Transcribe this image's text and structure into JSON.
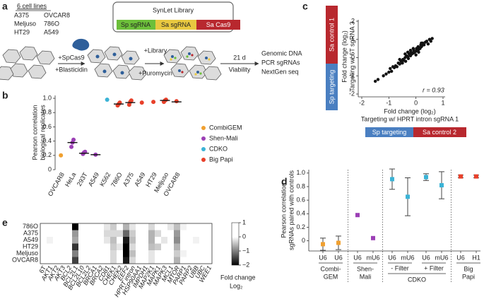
{
  "panel_labels": [
    "a",
    "b",
    "c",
    "d",
    "e"
  ],
  "schematic": {
    "cell_lines_title": "6 cell lines",
    "cell_lines": [
      "A375",
      "OVCAR8",
      "Meljuso",
      "786O",
      "HT29",
      "A549"
    ],
    "library_title": "SynLet Library",
    "library_parts": [
      "Sp sgRNA",
      "Sa sgRNA",
      "Sa Cas9"
    ],
    "step1": [
      "+SpCas9",
      "+Blasticidin"
    ],
    "step2": [
      "+Library",
      "+Puromycin"
    ],
    "step3": [
      "21 d",
      "Viability"
    ],
    "readout": [
      "Genomic DNA",
      "PCR sgRNAs",
      "NextGen seq"
    ]
  },
  "chart_data": [
    {
      "type": "dot",
      "y_label": [
        "Pearson correlation",
        "biological replicates"
      ],
      "categories": [
        "OVCAR8",
        "HeLa",
        "293T",
        "A549",
        "K562",
        "786O",
        "A375",
        "A549",
        "HT29",
        "Meljuso",
        "OVCAR8"
      ],
      "values": [
        null,
        0.38,
        0.23,
        0.21,
        null,
        0.92,
        0.94,
        null,
        null,
        0.97,
        0.95
      ],
      "points": [
        [
          0.2
        ],
        [
          0.32,
          0.38,
          0.42
        ],
        [
          0.22,
          0.24,
          0.25
        ],
        [
          0.21
        ],
        [
          0.98
        ],
        [
          0.9,
          0.92,
          0.94
        ],
        [
          0.91,
          0.95,
          0.97
        ],
        [
          0.94
        ],
        [
          0.95
        ],
        [
          0.95,
          0.97,
          0.98
        ],
        [
          0.96
        ]
      ],
      "colors": [
        "#f0a030",
        "#9b3fb5",
        "#9b3fb5",
        "#9b3fb5",
        "#3bb3d6",
        "#e8402a",
        "#e8402a",
        "#e8402a",
        "#e8402a",
        "#e8402a",
        "#e8402a"
      ],
      "series": [
        {
          "name": "CombiGEM",
          "color": "#f0a030"
        },
        {
          "name": "Shen-Mali",
          "color": "#9b3fb5"
        },
        {
          "name": "CDKO",
          "color": "#3bb3d6"
        },
        {
          "name": "Big Papi",
          "color": "#e8402a"
        }
      ],
      "ylim": [
        0,
        1.04
      ],
      "yticks": [
        0,
        0.2,
        0.4,
        0.6,
        0.8,
        {
          "value": 1,
          "label": "1.0"
        }
      ]
    },
    {
      "type": "scatter",
      "y_label": [
        "Fold change (log₂)",
        "Targeting w/ 6T sgRNA 3"
      ],
      "x_label": [
        "Fold change (log₂)",
        "Targeting w/ HPRT intron sgRNA 1"
      ],
      "y_bars": [
        "Sa control 1",
        "Sp targeting"
      ],
      "x_bars": [
        "Sp targeting",
        "Sa control 2"
      ],
      "annotation": "r = 0.93",
      "x": [
        -1.5,
        -1.4,
        -1.2,
        -1.1,
        -1.0,
        -0.95,
        -0.9,
        -0.85,
        -0.8,
        -0.75,
        -0.7,
        -0.65,
        -0.6,
        -0.55,
        -0.5,
        -0.48,
        -0.45,
        -0.4,
        -0.38,
        -0.35,
        -0.3,
        -0.28,
        -0.25,
        -0.2,
        -0.18,
        -0.15,
        -0.1,
        -0.08,
        -0.05,
        0,
        0.02,
        0.05,
        0.08,
        0.1,
        0.12,
        0.15,
        0.18,
        0.2,
        0.22,
        0.25,
        0.3,
        0.35,
        0.4,
        0.45,
        0.5,
        0.55,
        0.6,
        -0.3,
        -0.2,
        -0.1,
        0.0,
        0.1,
        0.2,
        -0.6,
        -0.4
      ],
      "values": [
        -1.3,
        -1.2,
        -1.0,
        -0.9,
        -0.8,
        -0.6,
        -0.75,
        -0.5,
        -0.55,
        -0.45,
        -0.5,
        -0.3,
        -0.35,
        -0.2,
        -0.3,
        -0.1,
        -0.15,
        0.0,
        -0.2,
        0.1,
        0.05,
        -0.05,
        0.2,
        0.1,
        0.3,
        0.2,
        0.25,
        0.4,
        0.3,
        0.35,
        0.5,
        0.4,
        0.6,
        0.45,
        0.55,
        0.5,
        0.7,
        0.6,
        0.65,
        0.8,
        0.7,
        0.85,
        0.9,
        0.75,
        1.0,
        0.9,
        1.05,
        0.3,
        0.4,
        0.5,
        0.15,
        0.3,
        0.8,
        -0.1,
        0.2
      ],
      "color": "#111111",
      "xlim": [
        -2,
        1
      ],
      "xticks": [
        -2,
        -1,
        0,
        1
      ],
      "ylim": [
        -2,
        2
      ],
      "yticks": [
        -2,
        -1,
        0,
        1,
        2
      ]
    },
    {
      "type": "errorbar",
      "y_label": [
        "Pearson correlation",
        "sgRNAs paired with controls"
      ],
      "series": [
        {
          "name": [
            "Combi-",
            "GEM"
          ],
          "color": "#f0a030",
          "categories": [
            "U6",
            "U6"
          ],
          "values": [
            -0.05,
            -0.03
          ],
          "errors": [
            0.09,
            0.1
          ]
        },
        {
          "name": [
            "Shen-",
            "Mali"
          ],
          "color": "#9b3fb5",
          "categories": [
            "U6",
            "mU6"
          ],
          "values": [
            0.38,
            0.04
          ],
          "errors": [
            null,
            null
          ]
        },
        {
          "name": "CDKO",
          "color": "#3bb3d6",
          "subgroups": [
            "- Filter",
            "+ Filter"
          ],
          "categories": [
            "U6",
            "mU6",
            "U6",
            "mU6"
          ],
          "values": [
            0.91,
            0.65,
            0.94,
            0.82
          ],
          "errors": [
            0.15,
            0.28,
            0.05,
            0.2
          ]
        },
        {
          "name": [
            "Big",
            "Papi"
          ],
          "color": "#e8402a",
          "categories": [
            "U6",
            "H1"
          ],
          "values": [
            0.95,
            0.95
          ],
          "errors": [
            0.02,
            0.02
          ]
        }
      ],
      "ylim": [
        -0.15,
        1.05
      ],
      "yticks": [
        0,
        0.2,
        0.4,
        0.6,
        0.8,
        {
          "value": 1,
          "label": "1.0"
        }
      ]
    },
    {
      "type": "heatmap",
      "rows": [
        "786O",
        "A375",
        "A549",
        "HT29",
        "Meljuso",
        "OVCAR8"
      ],
      "columns": [
        "6T",
        "AKT1",
        "AKT2",
        "AKT3",
        "BCL2",
        "BCL2L1",
        "BCL2L10",
        "BCL2L2",
        "BRCA1",
        "BRCA2",
        "CD81",
        "CHEK1",
        "CHEK2",
        "EEF2",
        "HPRT intron",
        "HSP90AA1",
        "IMPDH1",
        "MAP2K1",
        "MAPK1",
        "MAPK3",
        "MCL1",
        "MTOR",
        "PARP1",
        "PARP2",
        "UBB",
        "UBC",
        "WEE1"
      ],
      "values": [
        [
          0,
          0,
          0,
          0,
          0,
          -2,
          0,
          0,
          0,
          0,
          -0.2,
          -0.4,
          0,
          -0.6,
          -0.2,
          0,
          0,
          -0.3,
          0,
          0,
          -0.2,
          -0.5,
          -0.1,
          0,
          0,
          0,
          0
        ],
        [
          0,
          0,
          0,
          0,
          0,
          -0.8,
          0,
          0,
          0,
          0,
          -0.3,
          -0.3,
          -0.3,
          -1.2,
          -0.4,
          0,
          0,
          -0.6,
          -0.3,
          0,
          0,
          -0.8,
          0,
          0,
          0,
          0,
          0
        ],
        [
          0,
          -0.1,
          0,
          0,
          0,
          -0.7,
          0,
          0,
          0,
          0,
          -0.2,
          -0.5,
          0,
          -1.8,
          -0.5,
          0,
          0,
          -0.6,
          0,
          -0.2,
          0,
          -0.9,
          0,
          0,
          -0.1,
          0,
          0
        ],
        [
          0,
          0,
          0,
          0,
          0,
          -1.6,
          0,
          0,
          0,
          0,
          0,
          -0.4,
          -0.2,
          -2,
          -0.3,
          0,
          0,
          -0.5,
          -0.4,
          0,
          0,
          -0.6,
          0,
          0,
          0,
          0,
          0
        ],
        [
          0,
          0,
          0,
          0,
          0,
          -1,
          0,
          0,
          0,
          0,
          0,
          -0.3,
          0,
          -2,
          -0.5,
          0,
          0,
          -0.2,
          0,
          0,
          0,
          -0.4,
          -0.1,
          0,
          0,
          0,
          0
        ],
        [
          0,
          0,
          0,
          0,
          0,
          -1.5,
          0,
          0,
          0,
          0,
          0,
          -0.3,
          0,
          -1.8,
          -0.3,
          0,
          0,
          -0.2,
          0,
          0,
          0,
          -0.6,
          0,
          0,
          0,
          0,
          0
        ]
      ],
      "clim": [
        -2,
        1
      ],
      "cticks": [
        1,
        0,
        {
          "value": -1,
          "label": "−1"
        },
        {
          "value": -2,
          "label": "−2"
        }
      ],
      "colorbar_label": [
        "Fold change",
        "Log₂"
      ]
    }
  ]
}
